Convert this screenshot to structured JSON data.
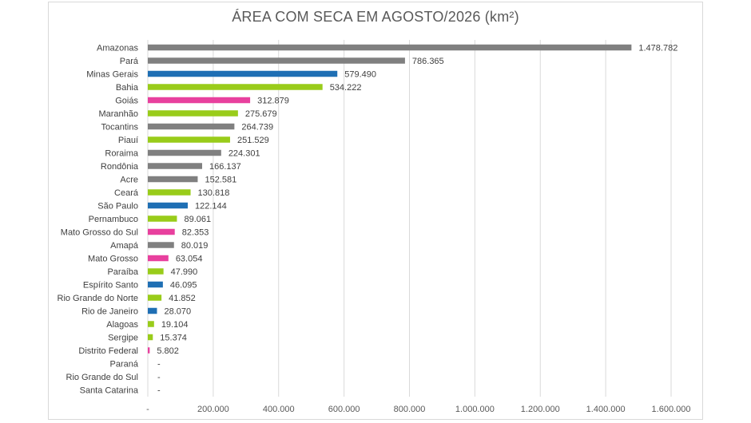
{
  "chart_data": {
    "type": "bar",
    "orientation": "horizontal",
    "title": "ÁREA COM SECA EM AGOSTO/2026 (km²)",
    "xlabel": "",
    "ylabel": "",
    "xlim": [
      0,
      1600000
    ],
    "x_ticks": [
      0,
      200000,
      400000,
      600000,
      800000,
      1000000,
      1200000,
      1400000,
      1600000
    ],
    "x_tick_labels": [
      "-",
      "200.000",
      "400.000",
      "600.000",
      "800.000",
      "1.000.000",
      "1.200.000",
      "1.400.000",
      "1.600.000"
    ],
    "grid": "vertical",
    "legend": "none",
    "colors": {
      "gray": "#808080",
      "blue": "#1f6fb4",
      "green": "#99cc1a",
      "pink": "#e8409e"
    },
    "categories": [
      "Amazonas",
      "Pará",
      "Minas Gerais",
      "Bahia",
      "Goiás",
      "Maranhão",
      "Tocantins",
      "Piauí",
      "Roraima",
      "Rondônia",
      "Acre",
      "Ceará",
      "São Paulo",
      "Pernambuco",
      "Mato Grosso do Sul",
      "Amapá",
      "Mato Grosso",
      "Paraíba",
      "Espírito Santo",
      "Rio Grande do Norte",
      "Rio de Janeiro",
      "Alagoas",
      "Sergipe",
      "Distrito Federal",
      "Paraná",
      "Rio Grande do Sul",
      "Santa Catarina"
    ],
    "values": [
      1478782,
      786365,
      579490,
      534222,
      312879,
      275679,
      264739,
      251529,
      224301,
      166137,
      152581,
      130818,
      122144,
      89061,
      82353,
      80019,
      63054,
      47990,
      46095,
      41852,
      28070,
      19104,
      15374,
      5802,
      0,
      0,
      0
    ],
    "value_labels": [
      "1.478.782",
      "786.365",
      "579.490",
      "534.222",
      "312.879",
      "275.679",
      "264.739",
      "251.529",
      "224.301",
      "166.137",
      "152.581",
      "130.818",
      "122.144",
      "89.061",
      "82.353",
      "80.019",
      "63.054",
      "47.990",
      "46.095",
      "41.852",
      "28.070",
      "19.104",
      "15.374",
      "5.802",
      "-",
      "-",
      "-"
    ],
    "bar_colors": [
      "gray",
      "gray",
      "blue",
      "green",
      "pink",
      "green",
      "gray",
      "green",
      "gray",
      "gray",
      "gray",
      "green",
      "blue",
      "green",
      "pink",
      "gray",
      "pink",
      "green",
      "blue",
      "green",
      "blue",
      "green",
      "green",
      "pink",
      "pink",
      "pink",
      "pink"
    ]
  }
}
